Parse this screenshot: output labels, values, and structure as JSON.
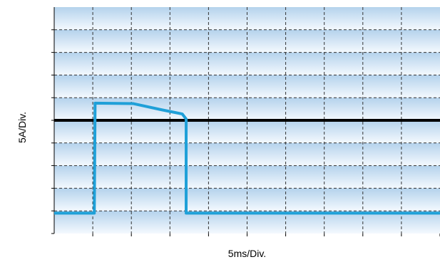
{
  "chart_data": {
    "type": "line",
    "title": "",
    "xlabel": "5ms/Div.",
    "ylabel": "5A/Div.",
    "grid": true,
    "x_divisions": 10,
    "y_divisions": 10,
    "x_unit": "ms",
    "y_unit": "A",
    "x_per_div": 5,
    "y_per_div": 5,
    "xlim": [
      0,
      50
    ],
    "ylim": [
      -25,
      25
    ],
    "reference_level": 0,
    "series": [
      {
        "values": [
          {
            "x": 0.0,
            "y": -20.5
          },
          {
            "x": 5.2,
            "y": -20.5
          },
          {
            "x": 5.3,
            "y": 3.8
          },
          {
            "x": 10.2,
            "y": 3.7
          },
          {
            "x": 14.0,
            "y": 2.3
          },
          {
            "x": 16.6,
            "y": 1.4
          },
          {
            "x": 17.1,
            "y": 0.3
          },
          {
            "x": 17.1,
            "y": -20.5
          },
          {
            "x": 50.0,
            "y": -20.5
          }
        ]
      }
    ]
  },
  "colors": {
    "trace": "#1fa0d8",
    "reference_line": "#000000",
    "grid": "#333333",
    "background_top": "#b8d5ee",
    "background_bottom": "#c6dff4"
  }
}
